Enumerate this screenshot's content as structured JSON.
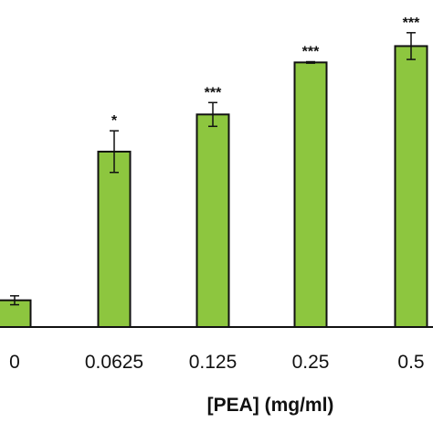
{
  "chart_data": {
    "type": "bar",
    "xlabel": "[PEA] (mg/ml)",
    "categories": [
      "0",
      "0.0625",
      "0.125",
      "0.25",
      "0.5"
    ],
    "values": [
      0.18,
      1.18,
      1.43,
      1.78,
      1.89
    ],
    "errors": [
      0.03,
      0.14,
      0.08,
      0.005,
      0.09
    ],
    "significance": [
      "",
      "*",
      "***",
      "***",
      "***"
    ],
    "ylim": [
      0,
      2.2
    ],
    "grid": false,
    "legend": "none",
    "bar_color": "#8dc63f",
    "bar_edge_color": "#111111"
  }
}
